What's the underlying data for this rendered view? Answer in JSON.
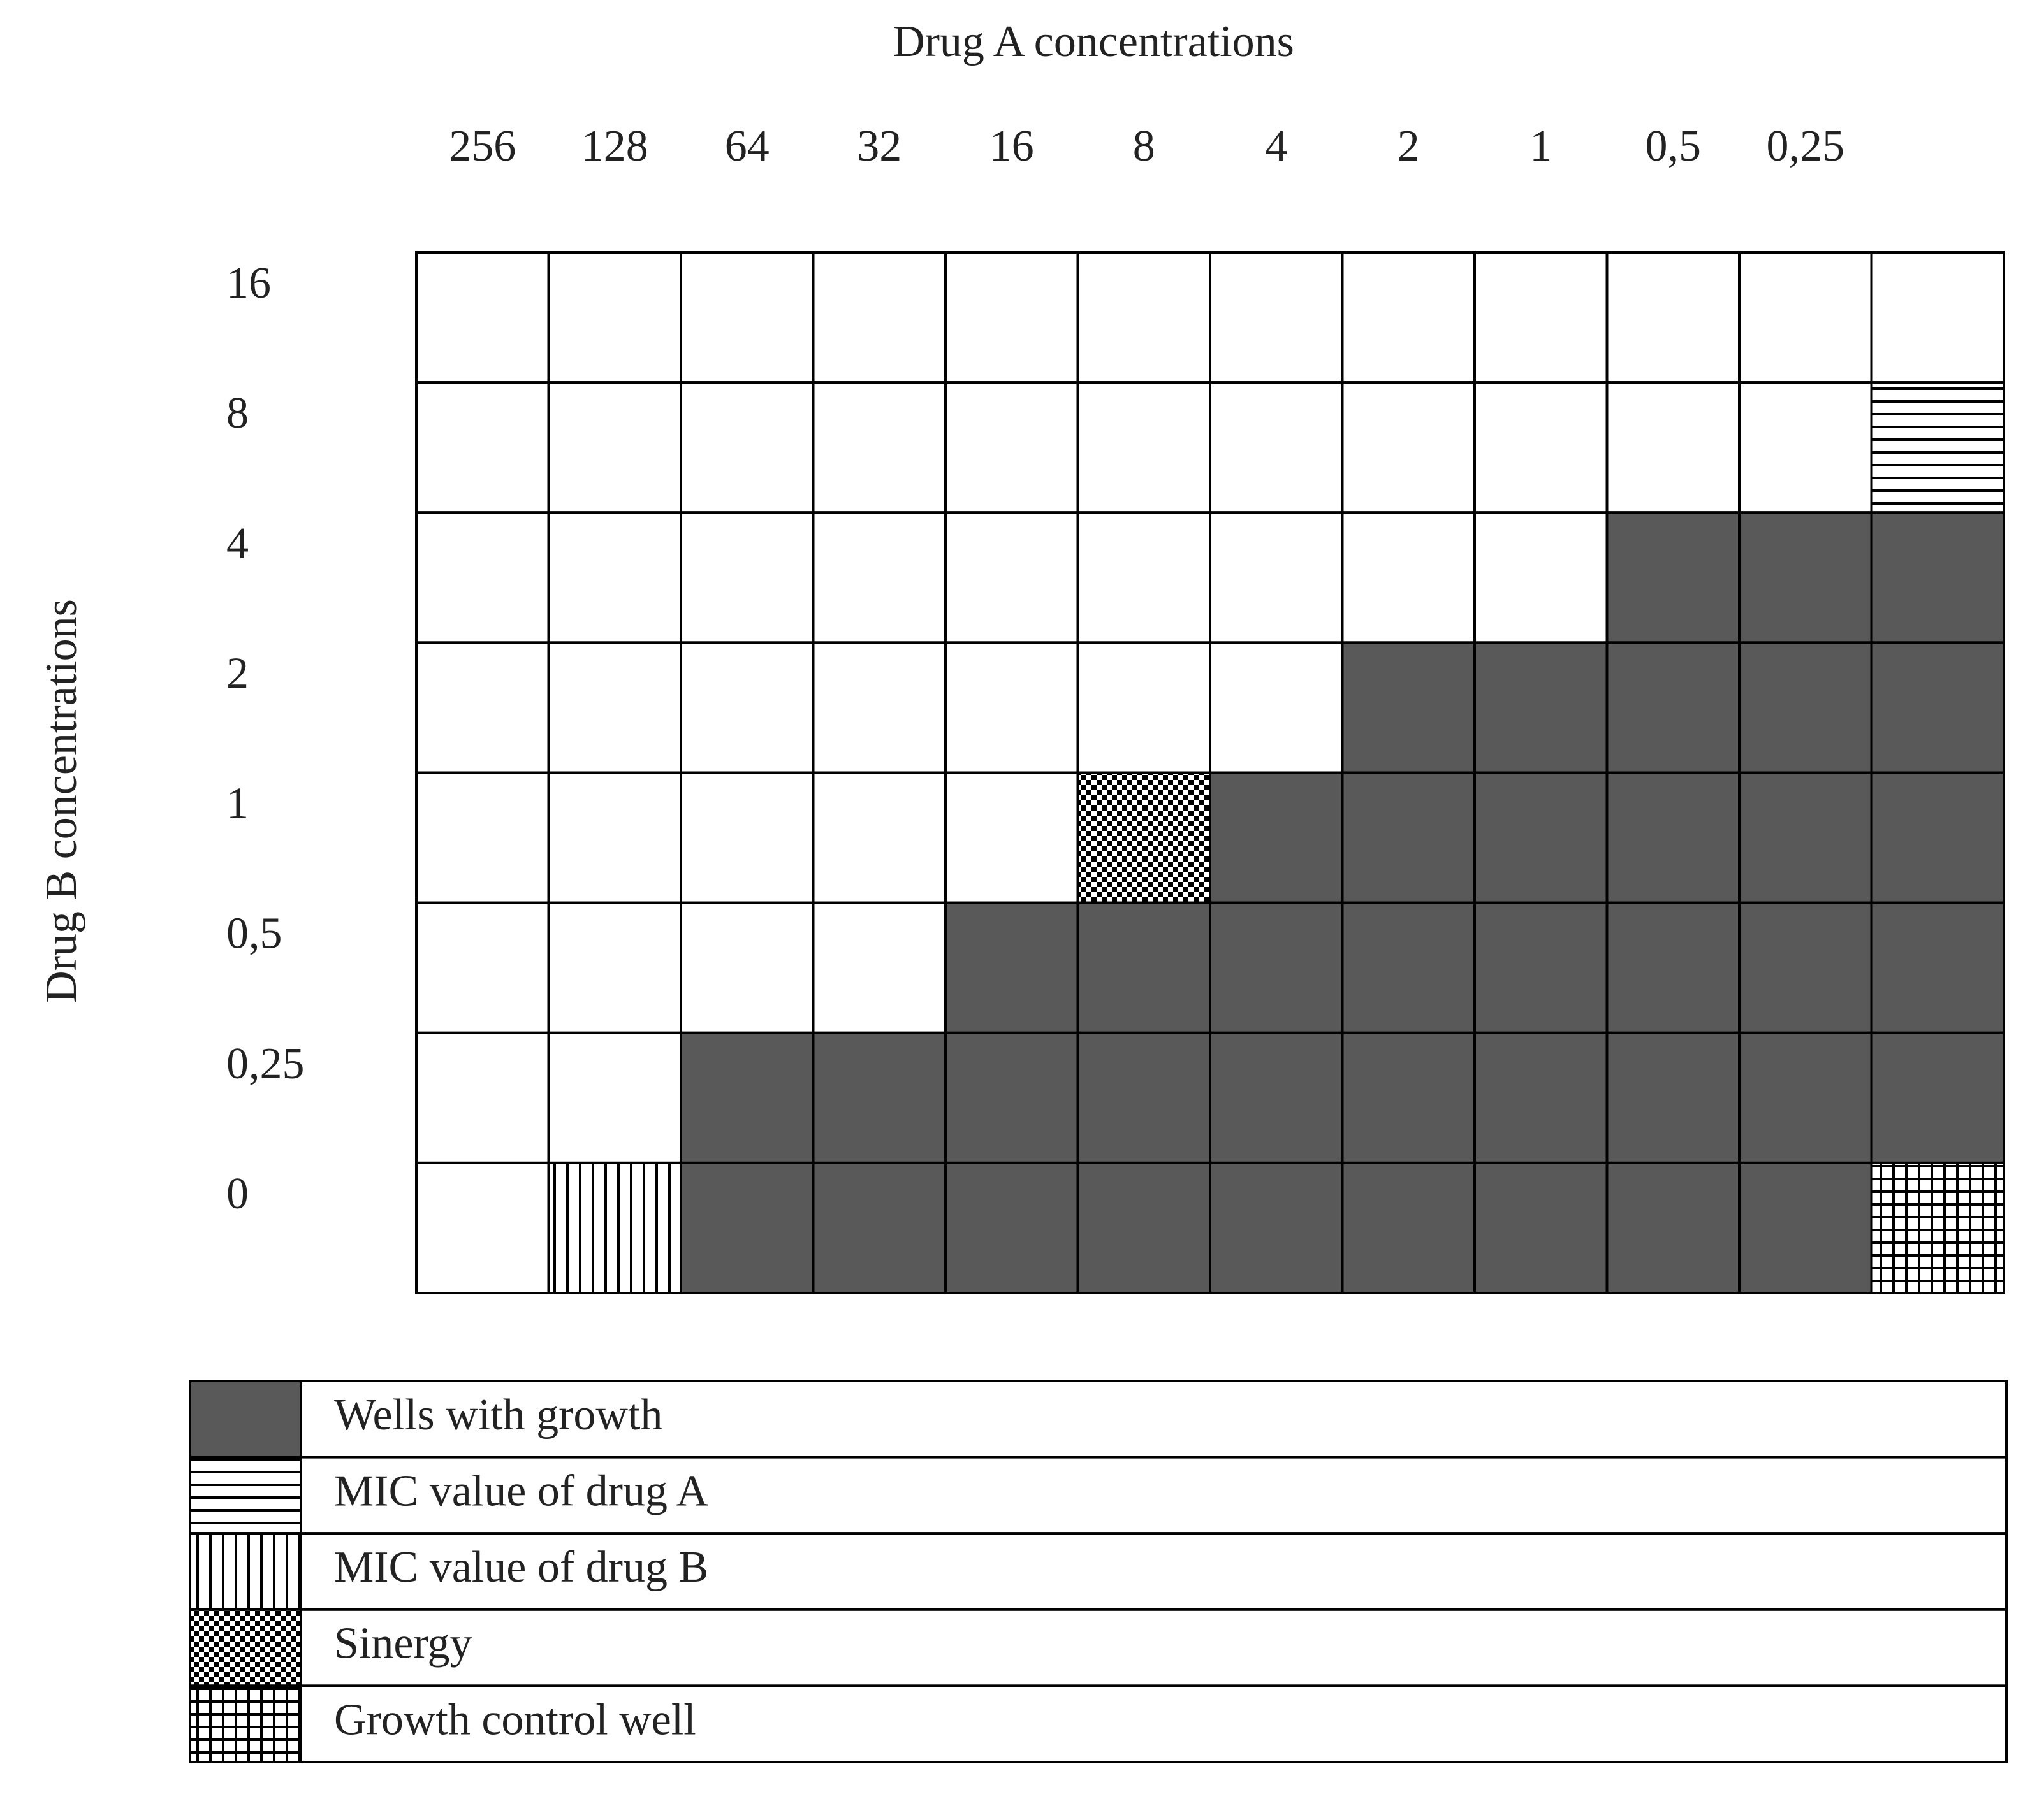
{
  "header": {
    "title": "Drug A concentrations"
  },
  "y_axis": {
    "label": "Drug B concentrations"
  },
  "columns": [
    "256",
    "128",
    "64",
    "32",
    "16",
    "8",
    "4",
    "2",
    "1",
    "0,5",
    "0,25"
  ],
  "rows": [
    "16",
    "8",
    "4",
    "2",
    "1",
    "0,5",
    "0,25",
    "0"
  ],
  "legend": [
    "Wells with growth",
    "MIC value of drug A",
    "MIC value of drug B",
    "Sinergy",
    "Growth control well"
  ]
}
